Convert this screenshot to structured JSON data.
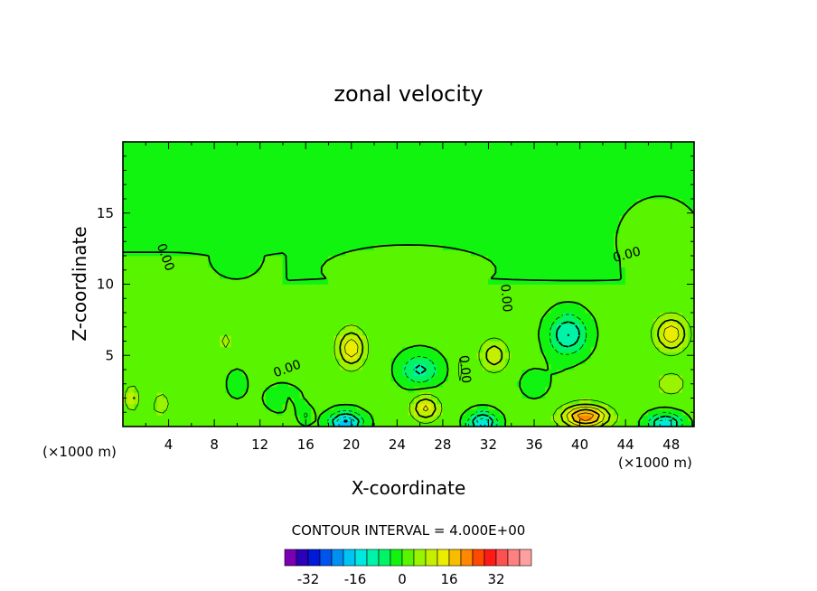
{
  "chart_data": {
    "type": "filled-contour",
    "title": "zonal velocity",
    "xlabel": "X-coordinate",
    "ylabel": "Z-coordinate",
    "x_unit_label": "(×1000 m)",
    "xlim": [
      0,
      50
    ],
    "ylim": [
      0,
      20
    ],
    "x_ticks": [
      4,
      8,
      12,
      16,
      20,
      24,
      28,
      32,
      36,
      40,
      44,
      48
    ],
    "y_ticks": [
      5,
      10,
      15
    ],
    "contour_interval_text": "CONTOUR INTERVAL = 4.000E+00",
    "contour_labels": [
      {
        "text": "0.00",
        "x": 3.4,
        "y": 11.8,
        "rot": 70
      },
      {
        "text": "0.00",
        "x": 14.5,
        "y": 3.8,
        "rot": -20
      },
      {
        "text": "0.00",
        "x": 29.6,
        "y": 4.0,
        "rot": 85
      },
      {
        "text": "0.00",
        "x": 33.2,
        "y": 9.0,
        "rot": 85
      },
      {
        "text": "0.00",
        "x": 44.2,
        "y": 11.8,
        "rot": -15
      }
    ],
    "colorbar": {
      "levels": [
        -36,
        -32,
        -28,
        -24,
        -20,
        -16,
        -12,
        -8,
        -4,
        0,
        4,
        8,
        12,
        16,
        20,
        24,
        28,
        32,
        36
      ],
      "tick_labels": [
        "-32",
        "-16",
        "0",
        "16",
        "32"
      ],
      "tick_values": [
        -32,
        -16,
        0,
        16,
        32
      ],
      "colors": [
        "#7a00b4",
        "#2a00b8",
        "#0018d8",
        "#0054ee",
        "#0090f4",
        "#00c4f4",
        "#00e8e0",
        "#00f4a8",
        "#00f466",
        "#10f410",
        "#58f400",
        "#98f400",
        "#c4f000",
        "#ecec00",
        "#f8bc00",
        "#ff8800",
        "#ff4800",
        "#ff1a1a",
        "#ff5050",
        "#ff8080",
        "#ffa0a0"
      ]
    },
    "grid": false,
    "legend": "none"
  }
}
